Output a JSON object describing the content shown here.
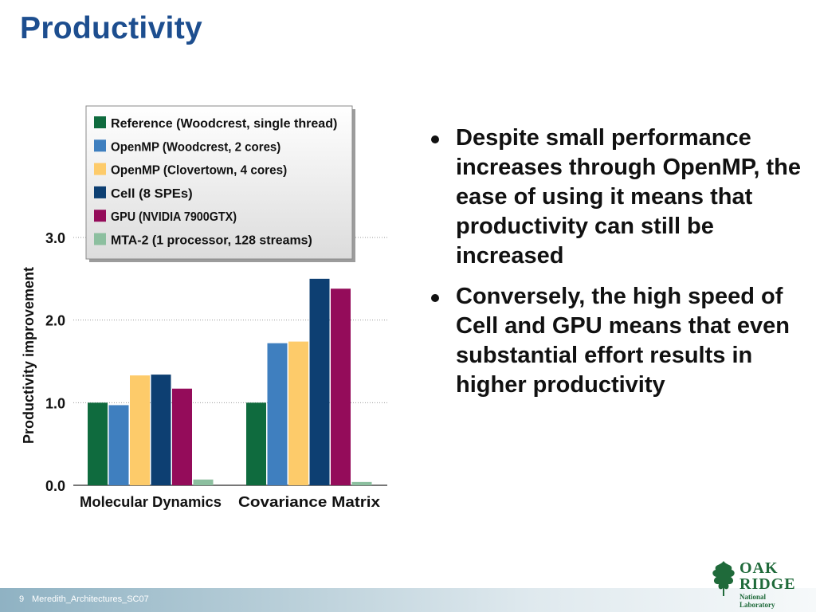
{
  "slide": {
    "title": "Productivity",
    "bullets": [
      "Despite small performance increases through OpenMP, the ease of using it means that productivity can still be increased",
      "Conversely, the high speed of Cell and GPU means that even substantial effort results in higher productivity"
    ],
    "footer": {
      "page_number": "9",
      "file_name": "Meredith_Architectures_SC07"
    },
    "logo": {
      "line1": "OAK",
      "line2": "RIDGE",
      "line3": "National Laboratory",
      "color": "#1f6a3a"
    }
  },
  "chart_data": {
    "type": "bar",
    "ylabel": "Productivity improvement",
    "xlabel": "",
    "ylim": [
      0,
      3
    ],
    "yticks": [
      "0.0",
      "1.0",
      "2.0",
      "3.0"
    ],
    "ytick_values": [
      0,
      1,
      2,
      3
    ],
    "grid": true,
    "legend_position": "top",
    "categories": [
      "Molecular Dynamics",
      "Covariance Matrix"
    ],
    "series": [
      {
        "name": "Reference (Woodcrest, single thread)",
        "color": "#0f6b3e",
        "values": [
          1.0,
          1.0
        ]
      },
      {
        "name": "OpenMP (Woodcrest, 2 cores)",
        "color": "#3f7fbf",
        "values": [
          0.97,
          1.72
        ]
      },
      {
        "name": "OpenMP (Clovertown, 4 cores)",
        "color": "#fdcb6a",
        "values": [
          1.33,
          1.74
        ]
      },
      {
        "name": "Cell (8 SPEs)",
        "color": "#0d3f72",
        "values": [
          1.34,
          2.5
        ]
      },
      {
        "name": "GPU (NVIDIA 7900GTX)",
        "color": "#940c5a",
        "values": [
          1.17,
          2.38
        ]
      },
      {
        "name": "MTA-2 (1 processor, 128 streams)",
        "color": "#8cbf9f",
        "values": [
          0.07,
          0.04
        ]
      }
    ]
  }
}
